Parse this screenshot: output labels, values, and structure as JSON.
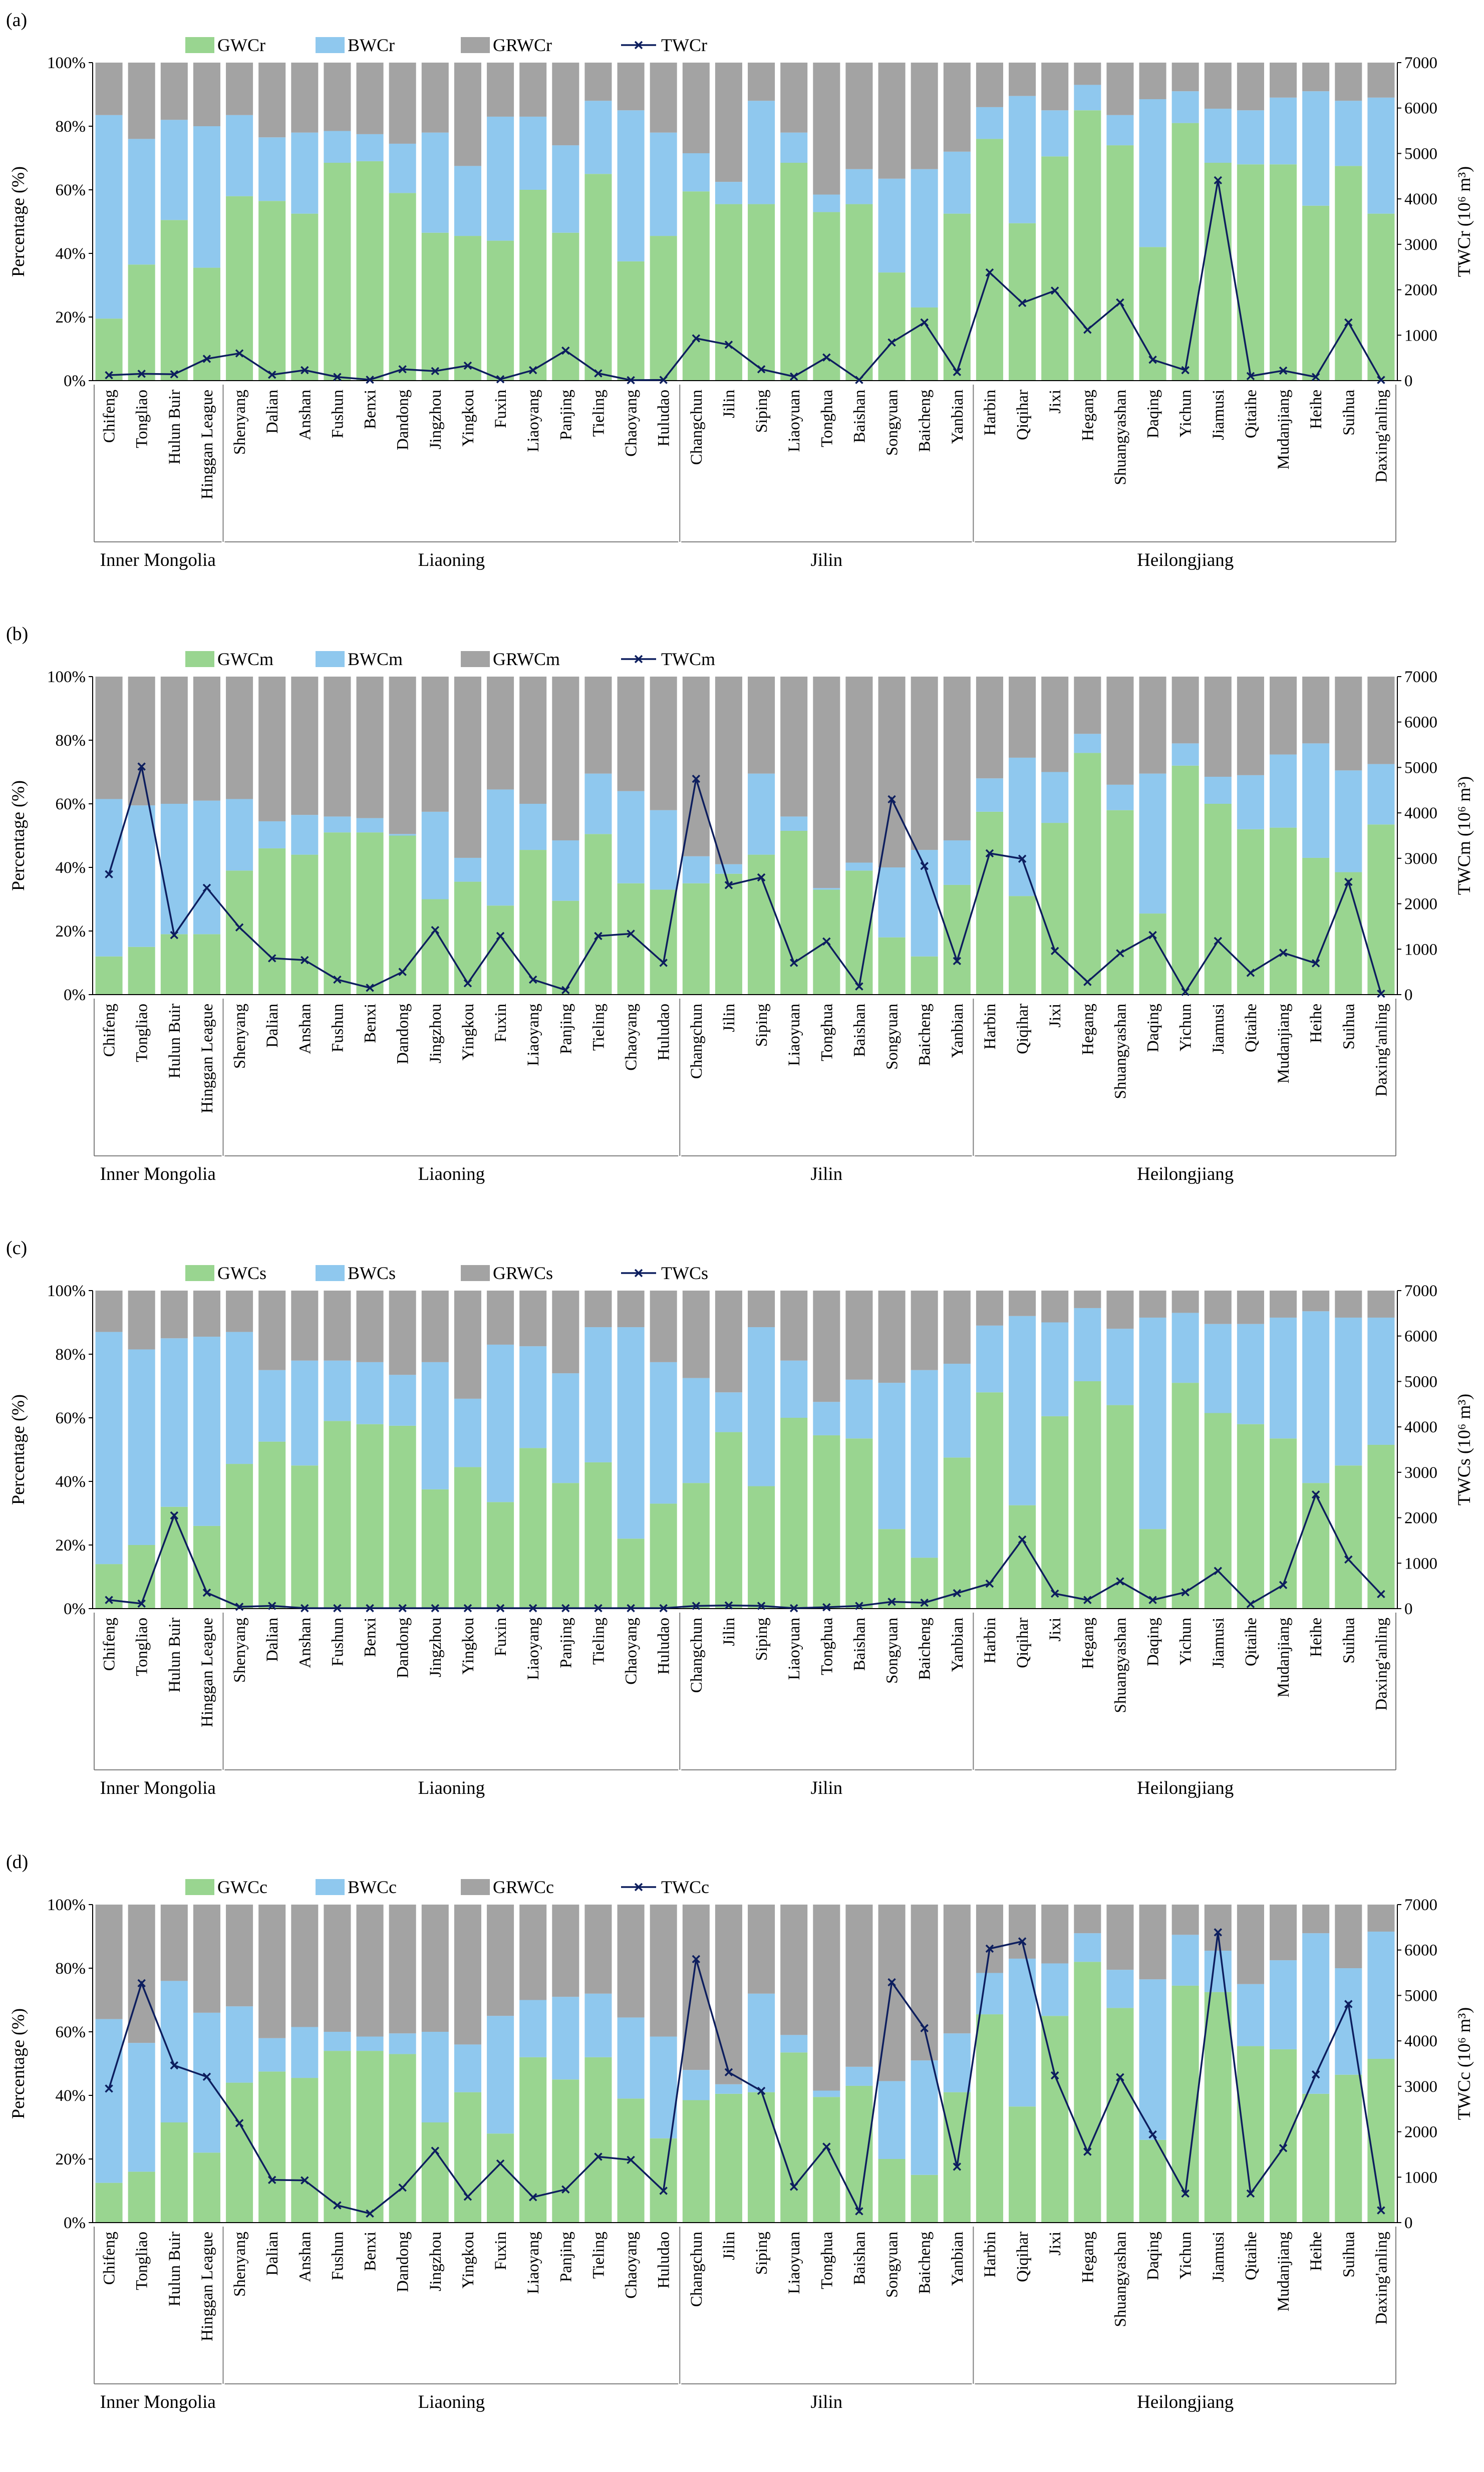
{
  "figure": {
    "province_groups": [
      {
        "name": "Inner Mongolia",
        "start": 0,
        "end": 3
      },
      {
        "name": "Liaoning",
        "start": 4,
        "end": 17
      },
      {
        "name": "Jilin",
        "start": 18,
        "end": 26
      },
      {
        "name": "Heilongjiang",
        "start": 27,
        "end": 39
      }
    ]
  },
  "chart_data": [
    {
      "type": "bar",
      "panel_label": "(a)",
      "stacked": true,
      "categories": [
        "Chifeng",
        "Tongliao",
        "Hulun Buir",
        "Hinggan League",
        "Shenyang",
        "Dalian",
        "Anshan",
        "Fushun",
        "Benxi",
        "Dandong",
        "Jingzhou",
        "Yingkou",
        "Fuxin",
        "Liaoyang",
        "Panjing",
        "Tieling",
        "Chaoyang",
        "Huludao",
        "Changchun",
        "Jilin",
        "Siping",
        "Liaoyuan",
        "Tonghua",
        "Baishan",
        "Songyuan",
        "Baicheng",
        "Yanbian",
        "Harbin",
        "Qiqihar",
        "Jixi",
        "Hegang",
        "Shuangyashan",
        "Daqing",
        "Yichun",
        "Jiamusi",
        "Qitaihe",
        "Mudanjiang",
        "Heihe",
        "Suihua",
        "Daxing'anling"
      ],
      "ylabel": "Percentage (%)",
      "ylim": [
        0,
        100
      ],
      "yticks": [
        "0%",
        "20%",
        "40%",
        "60%",
        "80%",
        "100%"
      ],
      "y2label": "TWCr (10⁶ m³)",
      "y2lim": [
        0,
        7000
      ],
      "y2ticks": [
        "0",
        "1000",
        "2000",
        "3000",
        "4000",
        "5000",
        "6000",
        "7000"
      ],
      "series": [
        {
          "name": "GWCr",
          "color": "#99d590",
          "values": [
            19.5,
            36.5,
            50.5,
            35.5,
            58,
            56.5,
            52.5,
            68.5,
            69,
            59,
            46.5,
            45.5,
            44,
            60,
            46.5,
            65,
            37.5,
            45.5,
            59.5,
            55.5,
            55.5,
            68.5,
            53,
            55.5,
            34,
            23,
            52.5,
            76,
            49.5,
            70.5,
            85,
            74,
            42,
            81,
            68.5,
            68,
            68,
            55,
            67.5,
            52.5
          ]
        },
        {
          "name": "BWCr",
          "color": "#8fc8ee",
          "values": [
            64,
            39.5,
            31.5,
            44.5,
            25.5,
            20,
            25.5,
            10,
            8.5,
            15.5,
            31.5,
            22,
            39,
            23,
            27.5,
            23,
            47.5,
            32.5,
            12,
            7,
            32.5,
            9.5,
            5.5,
            11,
            29.5,
            43.5,
            19.5,
            10,
            40,
            14.5,
            8,
            9.5,
            46.5,
            10,
            17,
            17,
            21,
            36,
            20.5,
            36.5
          ]
        },
        {
          "name": "GRWCr",
          "color": "#a3a3a3",
          "values": [
            16.5,
            24,
            18,
            20,
            16.5,
            23.5,
            22,
            21.5,
            22.5,
            25.5,
            22,
            32.5,
            17,
            17,
            26,
            12,
            15,
            22,
            28.5,
            37.5,
            12,
            22,
            41.5,
            33.5,
            36.5,
            33.5,
            28,
            14,
            10.5,
            15,
            7,
            16.5,
            11.5,
            9,
            14.5,
            15,
            11,
            9,
            12,
            11
          ]
        },
        {
          "name": "TWCr",
          "color": "#0d1e5e",
          "type": "line",
          "values": [
            120,
            150,
            140,
            480,
            600,
            130,
            230,
            80,
            20,
            250,
            210,
            330,
            30,
            230,
            660,
            160,
            10,
            15,
            930,
            790,
            250,
            90,
            510,
            15,
            840,
            1280,
            190,
            2380,
            1710,
            1980,
            1120,
            1720,
            460,
            230,
            4410,
            100,
            220,
            80,
            1280,
            15
          ]
        }
      ]
    },
    {
      "type": "bar",
      "panel_label": "(b)",
      "stacked": true,
      "categories": [
        "Chifeng",
        "Tongliao",
        "Hulun Buir",
        "Hinggan League",
        "Shenyang",
        "Dalian",
        "Anshan",
        "Fushun",
        "Benxi",
        "Dandong",
        "Jingzhou",
        "Yingkou",
        "Fuxin",
        "Liaoyang",
        "Panjing",
        "Tieling",
        "Chaoyang",
        "Huludao",
        "Changchun",
        "Jilin",
        "Siping",
        "Liaoyuan",
        "Tonghua",
        "Baishan",
        "Songyuan",
        "Baicheng",
        "Yanbian",
        "Harbin",
        "Qiqihar",
        "Jixi",
        "Hegang",
        "Shuangyashan",
        "Daqing",
        "Yichun",
        "Jiamusi",
        "Qitaihe",
        "Mudanjiang",
        "Heihe",
        "Suihua",
        "Daxing'anling"
      ],
      "ylabel": "Percentage (%)",
      "ylim": [
        0,
        100
      ],
      "yticks": [
        "0%",
        "20%",
        "40%",
        "60%",
        "80%",
        "100%"
      ],
      "y2label": "TWCm (10⁶ m³)",
      "y2lim": [
        0,
        7000
      ],
      "y2ticks": [
        "0",
        "1000",
        "2000",
        "3000",
        "4000",
        "5000",
        "6000",
        "7000"
      ],
      "series": [
        {
          "name": "GWCm",
          "color": "#99d590",
          "values": [
            12,
            15,
            19,
            19,
            39,
            46,
            44,
            51,
            51,
            50,
            30,
            35.5,
            28,
            45.5,
            29.5,
            50.5,
            35,
            33,
            35,
            38,
            44,
            51.5,
            33,
            39,
            18,
            12,
            34.5,
            57.5,
            31,
            54,
            76,
            58,
            25.5,
            72,
            60,
            52,
            52.5,
            43,
            38.5,
            53.5
          ]
        },
        {
          "name": "BWCm",
          "color": "#8fc8ee",
          "values": [
            49.5,
            44.5,
            41,
            42,
            22.5,
            8.5,
            12.5,
            5,
            4.5,
            0.5,
            27.5,
            7.5,
            36.5,
            14.5,
            19,
            19,
            29,
            25,
            8.5,
            3,
            25.5,
            4.5,
            0.5,
            2.5,
            22,
            33.5,
            14,
            10.5,
            43.5,
            16,
            6,
            8,
            44,
            7,
            8.5,
            17,
            23,
            36,
            32,
            19
          ]
        },
        {
          "name": "GRWCm",
          "color": "#a3a3a3",
          "values": [
            38.5,
            40.5,
            40,
            39,
            38.5,
            45.5,
            43.5,
            44,
            44.5,
            49.5,
            42.5,
            57,
            35.5,
            40,
            51.5,
            30.5,
            36,
            42,
            56.5,
            59,
            30.5,
            44,
            66.5,
            58.5,
            60,
            54.5,
            51.5,
            32,
            25.5,
            30,
            18,
            34,
            30.5,
            21,
            31.5,
            31,
            24.5,
            21,
            29.5,
            27.5
          ]
        },
        {
          "name": "TWCm",
          "color": "#0d1e5e",
          "type": "line",
          "values": [
            2650,
            5020,
            1310,
            2350,
            1480,
            800,
            760,
            330,
            150,
            500,
            1420,
            250,
            1290,
            330,
            100,
            1290,
            1340,
            700,
            4750,
            2410,
            2580,
            700,
            1170,
            180,
            4300,
            2830,
            740,
            3110,
            2990,
            960,
            280,
            910,
            1310,
            60,
            1180,
            480,
            920,
            690,
            2480,
            20
          ]
        }
      ]
    },
    {
      "type": "bar",
      "panel_label": "(c)",
      "stacked": true,
      "categories": [
        "Chifeng",
        "Tongliao",
        "Hulun Buir",
        "Hinggan League",
        "Shenyang",
        "Dalian",
        "Anshan",
        "Fushun",
        "Benxi",
        "Dandong",
        "Jingzhou",
        "Yingkou",
        "Fuxin",
        "Liaoyang",
        "Panjing",
        "Tieling",
        "Chaoyang",
        "Huludao",
        "Changchun",
        "Jilin",
        "Siping",
        "Liaoyuan",
        "Tonghua",
        "Baishan",
        "Songyuan",
        "Baicheng",
        "Yanbian",
        "Harbin",
        "Qiqihar",
        "Jixi",
        "Hegang",
        "Shuangyashan",
        "Daqing",
        "Yichun",
        "Jiamusi",
        "Qitaihe",
        "Mudanjiang",
        "Heihe",
        "Suihua",
        "Daxing'anling"
      ],
      "ylabel": "Percentage (%)",
      "ylim": [
        0,
        100
      ],
      "yticks": [
        "0%",
        "20%",
        "40%",
        "60%",
        "80%",
        "100%"
      ],
      "y2label": "TWCs (10⁶ m³)",
      "y2lim": [
        0,
        7000
      ],
      "y2ticks": [
        "0",
        "1000",
        "2000",
        "3000",
        "4000",
        "5000",
        "6000",
        "7000"
      ],
      "series": [
        {
          "name": "GWCs",
          "color": "#99d590",
          "values": [
            14,
            20,
            32,
            26,
            45.5,
            52.5,
            45,
            59,
            58,
            57.5,
            37.5,
            44.5,
            33.5,
            50.5,
            39.5,
            46,
            22,
            33,
            39.5,
            55.5,
            38.5,
            60,
            54.5,
            53.5,
            25,
            16,
            47.5,
            68,
            32.5,
            60.5,
            71.5,
            64,
            25,
            71,
            61.5,
            58,
            53.5,
            39.5,
            45,
            51.5
          ]
        },
        {
          "name": "BWCs",
          "color": "#8fc8ee",
          "values": [
            73,
            61.5,
            53,
            59.5,
            41.5,
            22.5,
            33,
            19,
            19.5,
            16,
            40,
            21.5,
            49.5,
            32,
            34.5,
            42.5,
            66.5,
            44.5,
            33,
            12.5,
            50,
            18,
            10.5,
            18.5,
            46,
            59,
            29.5,
            21,
            59.5,
            29.5,
            23,
            24,
            66.5,
            22,
            28,
            31.5,
            38,
            54,
            46.5,
            40
          ]
        },
        {
          "name": "GRWCs",
          "color": "#a3a3a3",
          "values": [
            13,
            18.5,
            15,
            14.5,
            13,
            25,
            22,
            22,
            22.5,
            26.5,
            22.5,
            34,
            17,
            17.5,
            26,
            11.5,
            11.5,
            22.5,
            27.5,
            32,
            11.5,
            22,
            35,
            28,
            29,
            25,
            23,
            11,
            8,
            10,
            5.5,
            12,
            8.5,
            7,
            10.5,
            10.5,
            8.5,
            6.5,
            8.5,
            8.5
          ]
        },
        {
          "name": "TWCs",
          "color": "#0d1e5e",
          "type": "line",
          "values": [
            190,
            110,
            2050,
            350,
            40,
            60,
            10,
            10,
            10,
            10,
            10,
            10,
            10,
            10,
            10,
            10,
            10,
            10,
            60,
            70,
            60,
            10,
            30,
            60,
            150,
            130,
            340,
            550,
            1520,
            330,
            190,
            600,
            190,
            360,
            830,
            100,
            520,
            2510,
            1080,
            320
          ]
        }
      ]
    },
    {
      "type": "bar",
      "panel_label": "(d)",
      "stacked": true,
      "categories": [
        "Chifeng",
        "Tongliao",
        "Hulun Buir",
        "Hinggan League",
        "Shenyang",
        "Dalian",
        "Anshan",
        "Fushun",
        "Benxi",
        "Dandong",
        "Jingzhou",
        "Yingkou",
        "Fuxin",
        "Liaoyang",
        "Panjing",
        "Tieling",
        "Chaoyang",
        "Huludao",
        "Changchun",
        "Jilin",
        "Siping",
        "Liaoyuan",
        "Tonghua",
        "Baishan",
        "Songyuan",
        "Baicheng",
        "Yanbian",
        "Harbin",
        "Qiqihar",
        "Jixi",
        "Hegang",
        "Shuangyashan",
        "Daqing",
        "Yichun",
        "Jiamusi",
        "Qitaihe",
        "Mudanjiang",
        "Heihe",
        "Suihua",
        "Daxing'anling"
      ],
      "ylabel": "Percentage (%)",
      "ylim": [
        0,
        100
      ],
      "yticks": [
        "0%",
        "20%",
        "40%",
        "60%",
        "80%",
        "100%"
      ],
      "y2label": "TWCc (10⁶ m³)",
      "y2lim": [
        0,
        7000
      ],
      "y2ticks": [
        "0",
        "1000",
        "2000",
        "3000",
        "4000",
        "5000",
        "6000",
        "7000"
      ],
      "series": [
        {
          "name": "GWCc",
          "color": "#99d590",
          "values": [
            12.5,
            16,
            31.5,
            22,
            44,
            47.5,
            45.5,
            54,
            54,
            53,
            31.5,
            41,
            28,
            52,
            45,
            52,
            39,
            26.5,
            38.5,
            40.5,
            41,
            53.5,
            39.5,
            43,
            20,
            15,
            41,
            65.5,
            36.5,
            65,
            82,
            67.5,
            26,
            74.5,
            72.5,
            55.5,
            54.5,
            40.5,
            46.5,
            51.5
          ]
        },
        {
          "name": "BWCc",
          "color": "#8fc8ee",
          "values": [
            51.5,
            40.5,
            44.5,
            44,
            24,
            10.5,
            16,
            6,
            4.5,
            6.5,
            28.5,
            15,
            37,
            18,
            26,
            20,
            25.5,
            32,
            9.5,
            3,
            31,
            5.5,
            2,
            6,
            24.5,
            36,
            18.5,
            13,
            46.5,
            16.5,
            9,
            12,
            50.5,
            16,
            13,
            19.5,
            28,
            50.5,
            33.5,
            40
          ]
        },
        {
          "name": "GRWCc",
          "color": "#a3a3a3",
          "values": [
            36,
            43.5,
            24,
            34,
            32,
            42,
            38.5,
            40,
            41.5,
            40.5,
            40,
            44,
            35,
            30,
            29,
            28,
            35.5,
            41.5,
            52,
            56.5,
            28,
            41,
            58.5,
            51,
            55.5,
            49,
            40.5,
            21.5,
            17,
            18.5,
            9,
            20.5,
            23.5,
            9.5,
            14.5,
            25,
            17.5,
            9,
            20,
            8.5
          ]
        },
        {
          "name": "TWCc",
          "color": "#0d1e5e",
          "type": "line",
          "values": [
            2950,
            5270,
            3460,
            3210,
            2190,
            940,
            930,
            380,
            200,
            770,
            1580,
            570,
            1300,
            560,
            730,
            1450,
            1380,
            700,
            5800,
            3310,
            2900,
            790,
            1670,
            250,
            5290,
            4280,
            1230,
            6030,
            6190,
            3240,
            1560,
            3200,
            1940,
            640,
            6390,
            640,
            1640,
            3260,
            4810,
            270
          ]
        }
      ]
    }
  ]
}
